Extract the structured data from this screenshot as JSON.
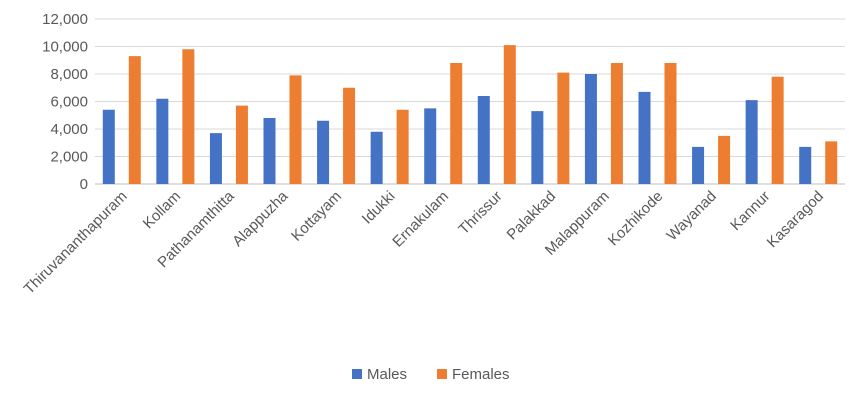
{
  "chart_data": {
    "type": "bar",
    "title": "",
    "xlabel": "",
    "ylabel": "",
    "ylim": [
      0,
      12000
    ],
    "yticks": [
      0,
      2000,
      4000,
      6000,
      8000,
      10000,
      12000
    ],
    "ytick_labels": [
      "0",
      "2,000",
      "4,000",
      "6,000",
      "8,000",
      "10,000",
      "12,000"
    ],
    "grid": true,
    "legend_position": "bottom",
    "categories": [
      "Thiruvananthapuram",
      "Kollam",
      "Pathanamthitta",
      "Alappuzha",
      "Kottayam",
      "Idukki",
      "Ernakulam",
      "Thrissur",
      "Palakkad",
      "Malappuram",
      "Kozhikode",
      "Wayanad",
      "Kannur",
      "Kasaragod"
    ],
    "series": [
      {
        "name": "Males",
        "color": "#4472c4",
        "values": [
          5400,
          6200,
          3700,
          4800,
          4600,
          3800,
          5500,
          6400,
          5300,
          8000,
          6700,
          2700,
          6100,
          2700
        ]
      },
      {
        "name": "Females",
        "color": "#ed7d31",
        "values": [
          9300,
          9800,
          5700,
          7900,
          7000,
          5400,
          8800,
          10100,
          8100,
          8800,
          8800,
          3500,
          7800,
          3100
        ]
      }
    ]
  }
}
